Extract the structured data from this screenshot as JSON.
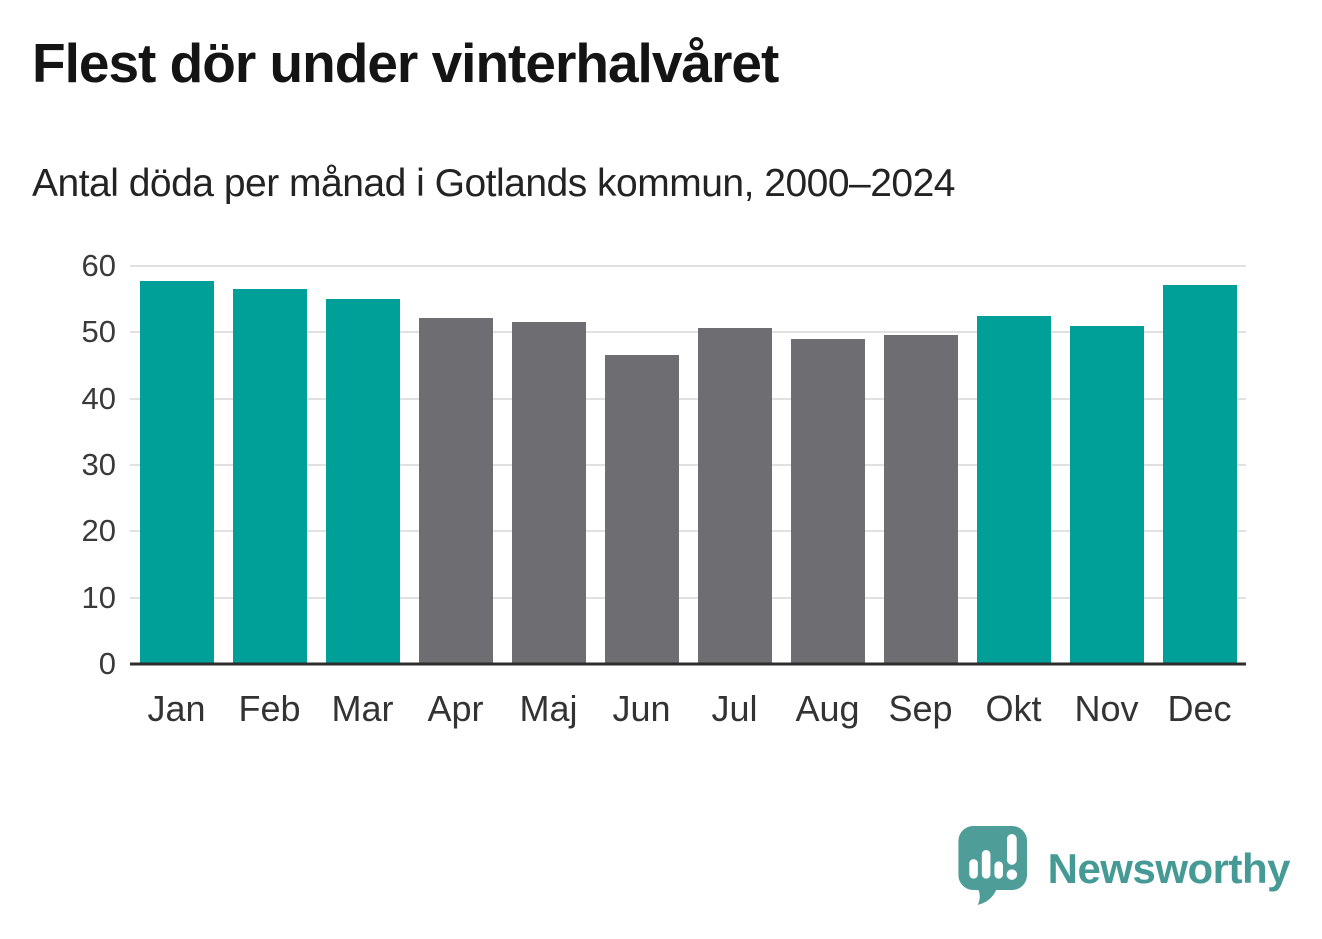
{
  "title": "Flest dör under vinterhalvåret",
  "subtitle": "Antal döda per månad i Gotlands kommun, 2000–2024",
  "chart_data": {
    "type": "bar",
    "title": "Flest dör under vinterhalvåret",
    "subtitle": "Antal döda per månad i Gotlands kommun, 2000–2024",
    "xlabel": "",
    "ylabel": "",
    "categories": [
      "Jan",
      "Feb",
      "Mar",
      "Apr",
      "Maj",
      "Jun",
      "Jul",
      "Aug",
      "Sep",
      "Okt",
      "Nov",
      "Dec"
    ],
    "values": [
      57.8,
      56.6,
      55.0,
      52.2,
      51.6,
      46.6,
      50.6,
      49.0,
      49.6,
      52.4,
      51.0,
      57.2
    ],
    "ylim": [
      0,
      60
    ],
    "yticks": [
      0,
      10,
      20,
      30,
      40,
      50,
      60
    ],
    "grid": "horizontal",
    "legend": "none",
    "highlighted_indices": [
      0,
      1,
      2,
      9,
      10,
      11
    ],
    "colors": {
      "highlight": "#00a099",
      "muted": "#6e6d72",
      "gridline": "#e1e1e1",
      "axis_line": "#2d2d2d",
      "tick_text": "#3a3a3a"
    }
  },
  "footer": {
    "brand": "Newsworthy",
    "brand_color": "#459a96",
    "logo_icon": "newsworthy-speech-bubble-chart-icon"
  }
}
